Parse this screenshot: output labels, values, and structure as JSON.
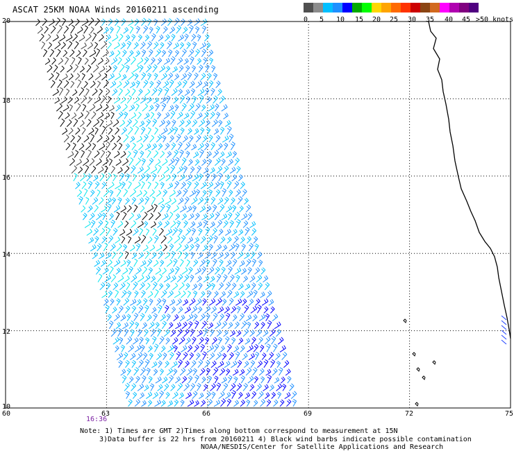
{
  "title": "ASCAT 25KM NOAA Winds 20160211 ascending",
  "colorbar": {
    "colors": [
      "#505050",
      "#8c8c8c",
      "#00bfff",
      "#1e90ff",
      "#0000ff",
      "#00aa00",
      "#00ff00",
      "#ffd700",
      "#ffa500",
      "#ff6a00",
      "#ff3300",
      "#cc0000",
      "#8b4513",
      "#d2691e",
      "#ff00ff",
      "#b000b0",
      "#800080",
      "#500080"
    ],
    "labels": [
      "0",
      "5",
      "10",
      "15",
      "20",
      "25",
      "30",
      "35",
      "40",
      "45",
      ">50 knots"
    ]
  },
  "map": {
    "lat_labels": [
      "20",
      "18",
      "16",
      "14",
      "12",
      "10"
    ],
    "lon_labels": [
      "60",
      "63",
      "66",
      "69",
      "72",
      "75"
    ],
    "lat_range": [
      10,
      20
    ],
    "lon_range": [
      60,
      75
    ],
    "grid": "dotted",
    "time_label": "16:36"
  },
  "notes": {
    "line1": "Note: 1) Times are GMT 2)Times along bottom correspond to measurement at 15N",
    "line2": "3)Data buffer is 22 hrs from 20160211 4) Black wind barbs indicate possible contamination",
    "line3": "NOAA/NESDIS/Center for Satellite Applications and Research"
  }
}
